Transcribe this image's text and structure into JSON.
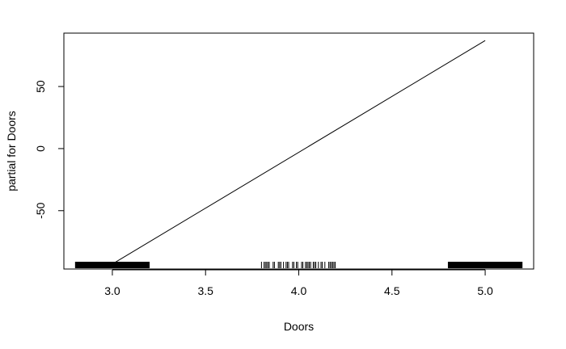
{
  "chart_data": {
    "type": "line",
    "xlabel": "Doors",
    "ylabel": "partial for Doors",
    "xlim": [
      2.74,
      5.26
    ],
    "ylim": [
      -97,
      93
    ],
    "x_ticks": [
      3.0,
      3.5,
      4.0,
      4.5,
      5.0
    ],
    "x_tick_labels": [
      "3.0",
      "3.5",
      "4.0",
      "4.5",
      "5.0"
    ],
    "y_ticks": [
      -50,
      0,
      50
    ],
    "y_tick_labels": [
      "-50",
      "0",
      "50"
    ],
    "series": [
      {
        "x": [
          3.0,
          5.0
        ],
        "y": [
          -93,
          87
        ]
      }
    ],
    "rug": {
      "note_bins": "jittered observations near x=3, 4 and 5",
      "clusters": [
        {
          "from": 2.8,
          "to": 3.2,
          "dense": true
        },
        {
          "from": 3.8,
          "to": 4.2,
          "dense": false
        },
        {
          "from": 4.8,
          "to": 5.2,
          "dense": true
        }
      ]
    },
    "grid": false,
    "legend": "none",
    "colors": {
      "line": "#000000",
      "axis": "#000000",
      "background": "#ffffff"
    }
  }
}
